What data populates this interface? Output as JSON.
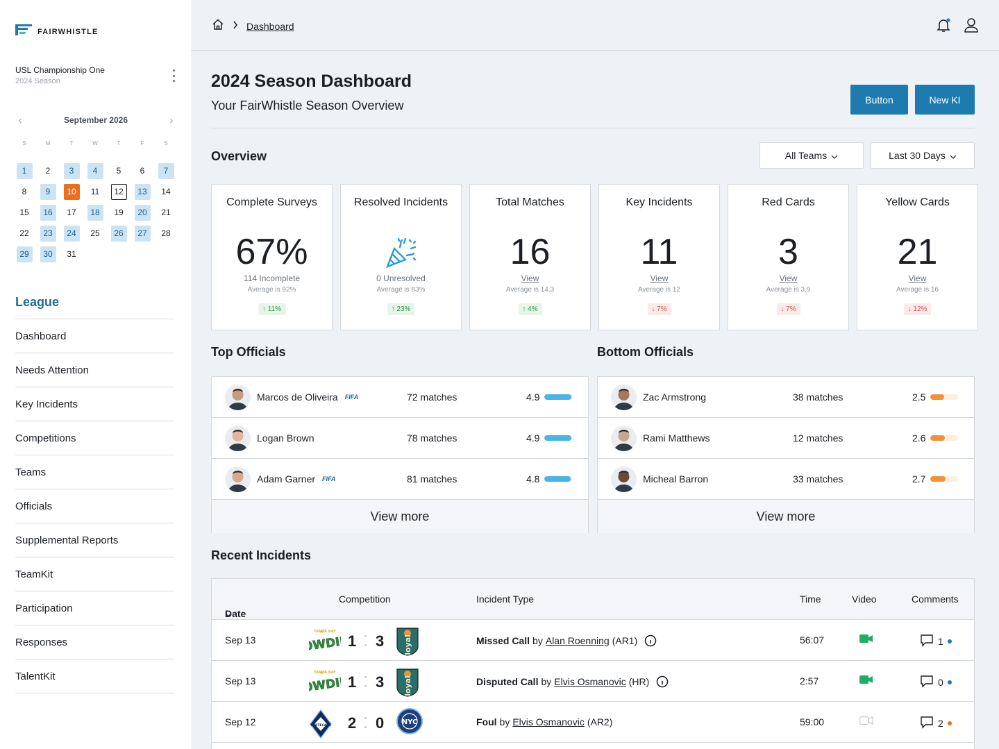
{
  "brand": {
    "name": "FAIRWHISTLE",
    "accent": "#1e7bb0",
    "highlight": "#cbe3f4",
    "today": "#ec6f1f"
  },
  "league": {
    "name": "USL Championship One",
    "season": "2024 Season"
  },
  "calendar": {
    "month": "September 2026",
    "dow": [
      "S",
      "M",
      "T",
      "W",
      "T",
      "F",
      "S"
    ],
    "days": [
      {
        "d": "1",
        "s": "hl"
      },
      {
        "d": "2",
        "s": ""
      },
      {
        "d": "3",
        "s": "hl"
      },
      {
        "d": "4",
        "s": "hl"
      },
      {
        "d": "5",
        "s": ""
      },
      {
        "d": "6",
        "s": ""
      },
      {
        "d": "7",
        "s": "hl"
      },
      {
        "d": "8",
        "s": ""
      },
      {
        "d": "9",
        "s": "hl"
      },
      {
        "d": "10",
        "s": "today"
      },
      {
        "d": "11",
        "s": ""
      },
      {
        "d": "12",
        "s": "boxed"
      },
      {
        "d": "13",
        "s": "hl"
      },
      {
        "d": "14",
        "s": ""
      },
      {
        "d": "15",
        "s": ""
      },
      {
        "d": "16",
        "s": "hl"
      },
      {
        "d": "17",
        "s": ""
      },
      {
        "d": "18",
        "s": "hl"
      },
      {
        "d": "19",
        "s": ""
      },
      {
        "d": "20",
        "s": "hl"
      },
      {
        "d": "21",
        "s": ""
      },
      {
        "d": "22",
        "s": ""
      },
      {
        "d": "23",
        "s": "hl"
      },
      {
        "d": "24",
        "s": "hl"
      },
      {
        "d": "25",
        "s": ""
      },
      {
        "d": "26",
        "s": "hl"
      },
      {
        "d": "27",
        "s": "hl"
      },
      {
        "d": "28",
        "s": ""
      },
      {
        "d": "29",
        "s": "hl"
      },
      {
        "d": "30",
        "s": "hl"
      },
      {
        "d": "31",
        "s": ""
      }
    ]
  },
  "nav": {
    "section": "League",
    "items": [
      "Dashboard",
      "Needs Attention",
      "Key Incidents",
      "Competitions",
      "Teams",
      "Officials",
      "Supplemental Reports",
      "TeamKit",
      "Participation",
      "Responses",
      "TalentKit"
    ]
  },
  "breadcrumb": {
    "current": "Dashboard"
  },
  "page": {
    "title": "2024 Season Dashboard",
    "subtitle": "Your FairWhistle Season Overview",
    "button1": "Button",
    "button2": "New KI"
  },
  "overview": {
    "title": "Overview",
    "filter_teams": "All Teams",
    "filter_range": "Last 30 Days",
    "cards": [
      {
        "label": "Complete Surveys",
        "value": "67%",
        "sub": "114 Incomplete",
        "avg": "Average is 92%",
        "change": "11%",
        "dir": "up"
      },
      {
        "label": "Resolved Incidents",
        "value": "",
        "icon": "party-popper-icon",
        "sub": "0 Unresolved",
        "avg": "Average is 83%",
        "change": "23%",
        "dir": "up"
      },
      {
        "label": "Total Matches",
        "value": "16",
        "sub": "View",
        "avg": "Average is 14.3",
        "change": "4%",
        "dir": "up"
      },
      {
        "label": "Key Incidents",
        "value": "11",
        "sub": "View",
        "avg": "Average is 12",
        "change": "7%",
        "dir": "down"
      },
      {
        "label": "Red Cards",
        "value": "3",
        "sub": "View",
        "avg": "Average is 3.9",
        "change": "7%",
        "dir": "down"
      },
      {
        "label": "Yellow Cards",
        "value": "21",
        "sub": "View",
        "avg": "Average is 16",
        "change": "12%",
        "dir": "down"
      }
    ]
  },
  "top_officials": {
    "title": "Top Officials",
    "view_more": "View more",
    "bar_color": "#4ab4e6",
    "rows": [
      {
        "name": "Marcos de Oliveira",
        "fifa": "FIFA",
        "matches": "72 matches",
        "rating": "4.9",
        "fill": 0.98
      },
      {
        "name": "Logan Brown",
        "fifa": "",
        "matches": "78 matches",
        "rating": "4.9",
        "fill": 0.98
      },
      {
        "name": "Adam Garner",
        "fifa": "FIFA",
        "matches": "81 matches",
        "rating": "4.8",
        "fill": 0.96
      }
    ]
  },
  "bottom_officials": {
    "title": "Bottom Officials",
    "view_more": "View more",
    "bar_color": "#f0923a",
    "rows": [
      {
        "name": "Zac Armstrong",
        "matches": "38 matches",
        "rating": "2.5",
        "fill": 0.5
      },
      {
        "name": "Rami Matthews",
        "matches": "12 matches",
        "rating": "2.6",
        "fill": 0.52
      },
      {
        "name": "Micheal Barron",
        "matches": "33 matches",
        "rating": "2.7",
        "fill": 0.54
      }
    ]
  },
  "recent": {
    "title": "Recent Incidents",
    "headers": {
      "date": "Date",
      "competition": "Competition",
      "type": "Incident Type",
      "time": "Time",
      "video": "Video",
      "comments": "Comments"
    },
    "rows": [
      {
        "date": "Sep 13",
        "home": "rowdies-logo",
        "score_home": "1",
        "score_away": "3",
        "away": "loyal-logo",
        "kind": "Missed Call",
        "by": "by",
        "official": "Alan Roenning",
        "role": "(AR1)",
        "info": true,
        "time": "56:07",
        "video": true,
        "comments": "1",
        "dot": "#1e7bb0"
      },
      {
        "date": "Sep 13",
        "home": "rowdies-logo",
        "score_home": "1",
        "score_away": "3",
        "away": "loyal-logo",
        "kind": "Disputed Call",
        "by": "by",
        "official": "Elvis Osmanovic",
        "role": "(HR)",
        "info": true,
        "time": "2:57",
        "video": true,
        "comments": "0",
        "dot": "#1e7bb0"
      },
      {
        "date": "Sep 12",
        "home": "whitecaps-logo",
        "score_home": "2",
        "score_away": "0",
        "away": "nycfc-logo",
        "kind": "Foul",
        "by": "by",
        "official": "Elvis Osmanovic",
        "role": "(AR2)",
        "info": false,
        "time": "59:00",
        "video": false,
        "comments": "2",
        "dot": "#ec6f1f"
      }
    ]
  }
}
